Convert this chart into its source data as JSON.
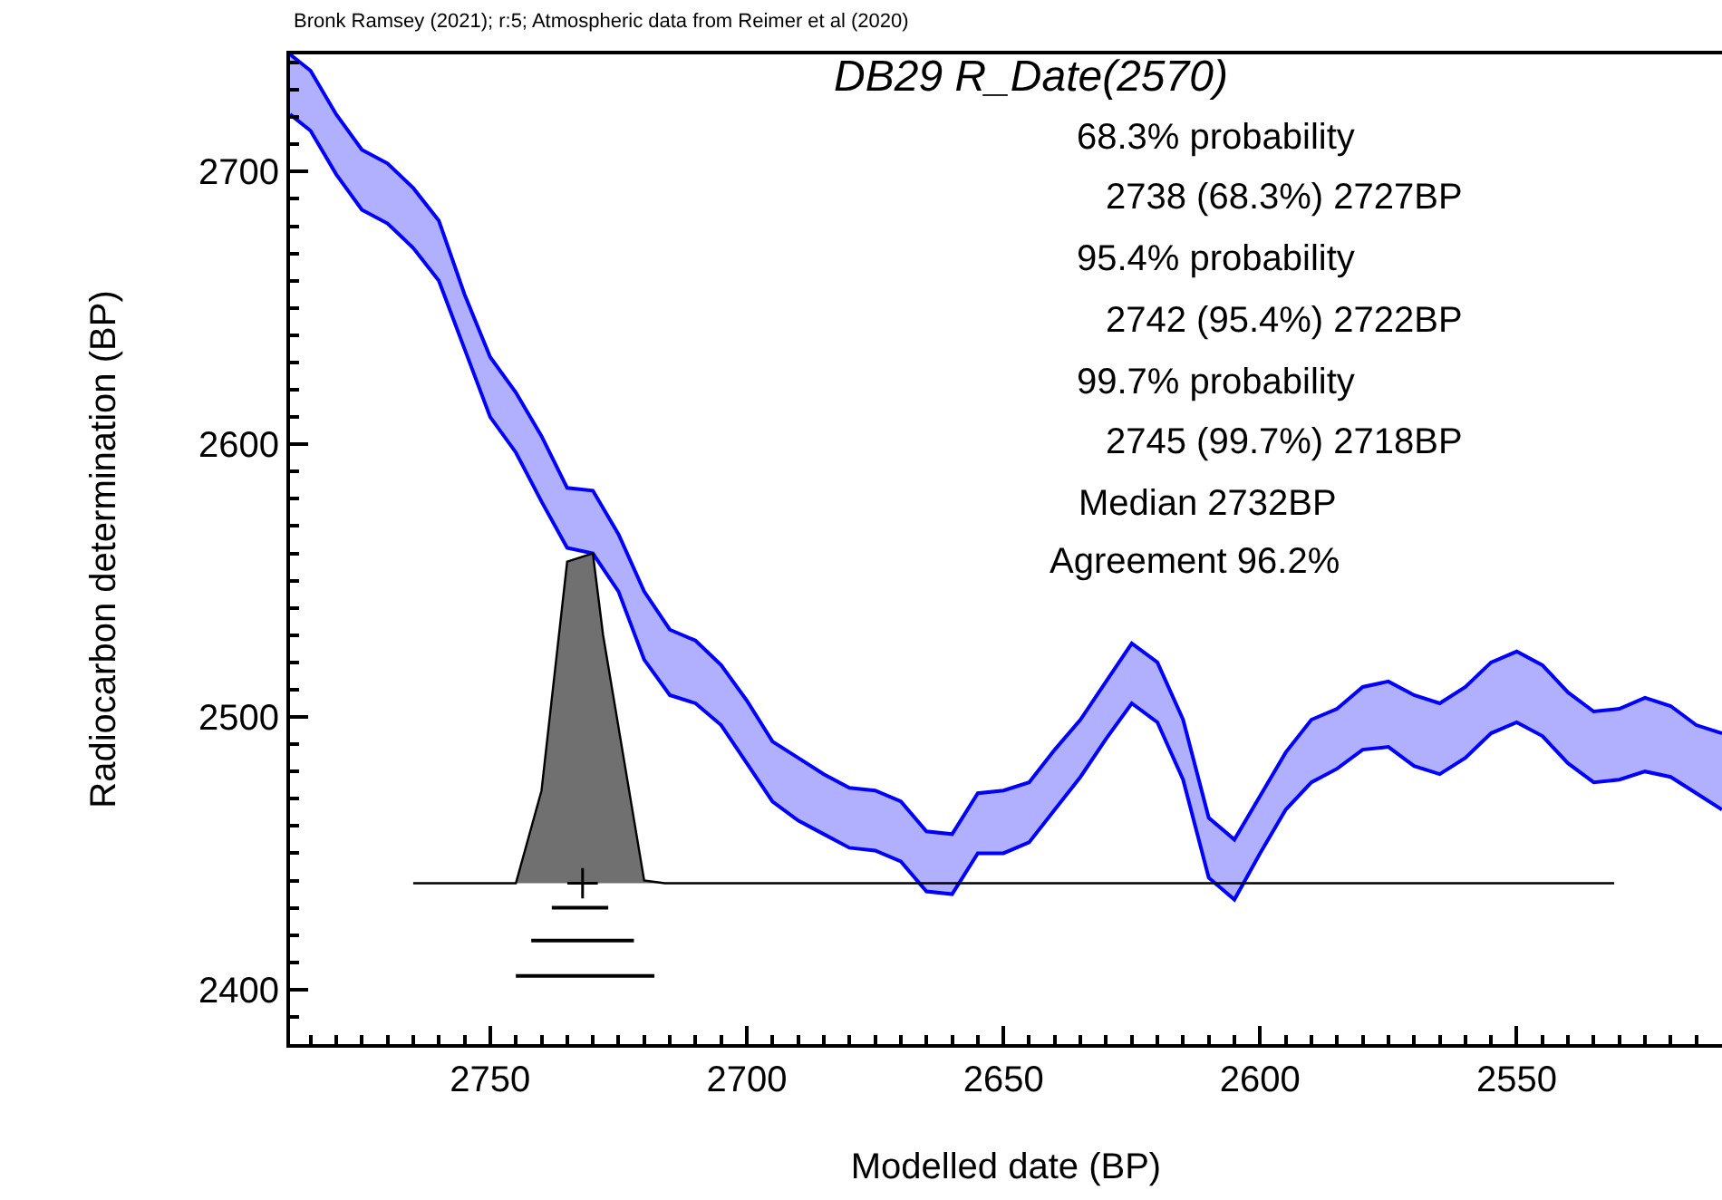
{
  "chart_data": {
    "type": "line",
    "title": "DB29 R_Date(2570)",
    "xlabel": "Modelled date (BP)",
    "ylabel": "Radiocarbon determination (BP)",
    "annotations": [
      "Bronk Ramsey (2021); r:5; Atmospheric data from Reimer et al (2020)",
      "68.3% probability",
      "2738 (68.3%) 2727BP",
      "95.4% probability",
      "2742 (95.4%) 2722BP",
      "99.7% probability",
      "2745 (99.7%) 2718BP",
      "Median 2732BP",
      "Agreement 96.2%"
    ],
    "xlim": [
      2789,
      2510
    ],
    "xticks": [
      2750,
      2700,
      2650,
      2600,
      2550
    ],
    "ylim": [
      2380,
      2743
    ],
    "yticks": [
      2400,
      2500,
      2600,
      2700
    ],
    "series": [
      {
        "type": "line",
        "color": "#0000ff",
        "x": [
          2789,
          2785,
          2780,
          2775,
          2770,
          2765,
          2760,
          2755,
          2750,
          2745,
          2740,
          2735,
          2730,
          2725,
          2720,
          2715,
          2710,
          2705,
          2700,
          2695,
          2690,
          2685,
          2680,
          2675,
          2670,
          2665,
          2660,
          2655,
          2650,
          2645,
          2640,
          2635,
          2630,
          2625,
          2620,
          2615,
          2610,
          2605,
          2600,
          2595,
          2590,
          2585,
          2580,
          2575,
          2570,
          2565,
          2560,
          2555,
          2550,
          2545,
          2540,
          2535,
          2530,
          2525,
          2520,
          2515,
          2510
        ],
        "values": [
          2743,
          2737,
          2721,
          2708,
          2703,
          2694,
          2682,
          2655,
          2632,
          2619,
          2603,
          2584,
          2583,
          2567,
          2546,
          2532,
          2528,
          2519,
          2506,
          2491,
          2485,
          2479,
          2474,
          2473,
          2469,
          2458,
          2457,
          2472,
          2473,
          2476,
          2488,
          2499,
          2513,
          2527,
          2520,
          2499,
          2463,
          2455,
          2471,
          2487,
          2499,
          2503,
          2511,
          2513,
          2508,
          2505,
          2511,
          2520,
          2524,
          2519,
          2509,
          2502,
          2503,
          2507,
          2504,
          2497,
          2494
        ]
      },
      {
        "type": "line",
        "color": "#0000ff",
        "x": [
          2789,
          2785,
          2780,
          2775,
          2770,
          2765,
          2760,
          2755,
          2750,
          2745,
          2740,
          2735,
          2730,
          2725,
          2720,
          2715,
          2710,
          2705,
          2700,
          2695,
          2690,
          2685,
          2680,
          2675,
          2670,
          2665,
          2660,
          2655,
          2650,
          2645,
          2640,
          2635,
          2630,
          2625,
          2620,
          2615,
          2610,
          2605,
          2600,
          2595,
          2590,
          2585,
          2580,
          2575,
          2570,
          2565,
          2560,
          2555,
          2550,
          2545,
          2540,
          2535,
          2530,
          2525,
          2520,
          2515,
          2510
        ],
        "values": [
          2721,
          2715,
          2699,
          2686,
          2681,
          2672,
          2660,
          2635,
          2610,
          2597,
          2579,
          2562,
          2560,
          2546,
          2521,
          2508,
          2505,
          2497,
          2483,
          2469,
          2462,
          2457,
          2452,
          2451,
          2447,
          2436,
          2435,
          2450,
          2450,
          2454,
          2466,
          2478,
          2492,
          2505,
          2498,
          2477,
          2441,
          2433,
          2450,
          2466,
          2476,
          2481,
          2488,
          2489,
          2482,
          2479,
          2485,
          2494,
          2498,
          2493,
          2483,
          2476,
          2477,
          2480,
          2478,
          2472,
          2466
        ]
      },
      {
        "color": "#0000ff",
        "x": [
          2789,
          2785,
          2780,
          2775,
          2770,
          2765,
          2760,
          2755,
          2750,
          2745,
          2740,
          2735,
          2730,
          2725,
          2720,
          2715,
          2710,
          2705,
          2700,
          2695,
          2690,
          2685,
          2680,
          2675,
          2670,
          2665,
          2660,
          2655,
          2650,
          2645,
          2640,
          2635,
          2630,
          2625,
          2620,
          2615,
          2610,
          2605,
          2600,
          2595,
          2590,
          2585,
          2580,
          2575,
          2570,
          2565,
          2560,
          2555,
          2550,
          2545,
          2540,
          2535,
          2530,
          2525,
          2520,
          2515,
          2510
        ],
        "values": [
          null,
          null,
          null,
          null,
          null,
          null,
          null,
          null,
          null,
          null,
          null,
          null,
          null,
          null,
          null,
          null,
          null,
          null,
          null,
          null,
          null,
          null,
          null,
          null,
          null,
          null,
          null,
          null,
          null,
          null,
          null,
          null,
          null,
          null,
          null,
          null,
          null,
          null,
          null,
          null,
          null,
          null,
          null,
          null,
          null,
          null,
          null,
          null,
          null,
          null,
          null,
          null,
          null,
          null,
          null,
          null,
          null
        ],
        "upper": [
          2743,
          2737,
          2721,
          2708,
          2703,
          2694,
          2682,
          2655,
          2632,
          2619,
          2603,
          2584,
          2583,
          2567,
          2546,
          2532,
          2528,
          2519,
          2506,
          2491,
          2485,
          2479,
          2474,
          2473,
          2469,
          2458,
          2457,
          2472,
          2473,
          2476,
          2488,
          2499,
          2513,
          2527,
          2520,
          2499,
          2463,
          2455,
          2471,
          2487,
          2499,
          2503,
          2511,
          2513,
          2508,
          2505,
          2511,
          2520,
          2524,
          2519,
          2509,
          2502,
          2503,
          2507,
          2504,
          2497,
          2494
        ],
        "lower": [
          2721,
          2715,
          2699,
          2686,
          2681,
          2672,
          2660,
          2635,
          2610,
          2597,
          2579,
          2562,
          2560,
          2546,
          2521,
          2508,
          2505,
          2497,
          2483,
          2469,
          2462,
          2457,
          2452,
          2451,
          2447,
          2436,
          2435,
          2450,
          2450,
          2454,
          2466,
          2478,
          2492,
          2505,
          2498,
          2477,
          2441,
          2433,
          2450,
          2466,
          2476,
          2481,
          2488,
          2489,
          2482,
          2479,
          2485,
          2494,
          2498,
          2493,
          2483,
          2476,
          2477,
          2480,
          2478,
          2472,
          2466
        ]
      },
      {
        "type": "area",
        "color": "#707070",
        "x": [
          2765,
          2745,
          2740,
          2735,
          2730,
          2728,
          2720,
          2716,
          2531
        ],
        "values": [
          2439,
          2439,
          2473,
          2557,
          2560,
          2530,
          2440,
          2439,
          2439
        ]
      },
      {
        "type": "line",
        "color": "#000000",
        "x": [
          2738,
          2727
        ],
        "values": [
          2430,
          2430
        ]
      },
      {
        "type": "line",
        "color": "#000000",
        "x": [
          2742,
          2722
        ],
        "values": [
          2418,
          2418
        ]
      },
      {
        "type": "line",
        "color": "#000000",
        "x": [
          2745,
          2718
        ],
        "values": [
          2405,
          2405
        ]
      },
      {
        "type": "scatter",
        "color": "#000000",
        "marker": "cross",
        "x": [
          2732
        ],
        "values": [
          2439
        ]
      }
    ]
  }
}
